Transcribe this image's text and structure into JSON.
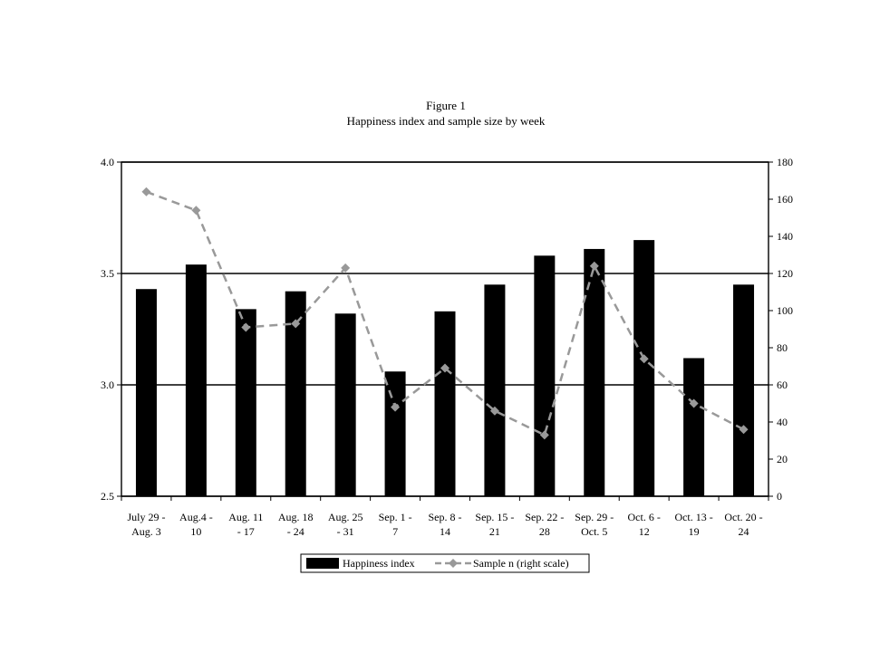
{
  "chart_data": {
    "type": "bar",
    "title": "Figure 1",
    "subtitle": "Happiness index and sample size by week",
    "categories": [
      [
        "July 29 -",
        "Aug. 3"
      ],
      [
        "Aug.4 -",
        "10"
      ],
      [
        "Aug. 11",
        "- 17"
      ],
      [
        "Aug. 18",
        "- 24"
      ],
      [
        "Aug. 25",
        "- 31"
      ],
      [
        "Sep. 1 -",
        "7"
      ],
      [
        "Sep. 8 -",
        "14"
      ],
      [
        "Sep. 15 -",
        "21"
      ],
      [
        "Sep. 22 -",
        "28"
      ],
      [
        "Sep. 29 -",
        "Oct. 5"
      ],
      [
        "Oct. 6 -",
        "12"
      ],
      [
        "Oct. 13 -",
        "19"
      ],
      [
        "Oct. 20 -",
        "24"
      ]
    ],
    "series": [
      {
        "name": "Happiness index",
        "kind": "bar",
        "axis": "left",
        "color": "#000000",
        "values": [
          3.43,
          3.54,
          3.34,
          3.42,
          3.32,
          3.06,
          3.33,
          3.45,
          3.58,
          3.61,
          3.65,
          3.12,
          3.45
        ]
      },
      {
        "name": "Sample n (right scale)",
        "kind": "line",
        "axis": "right",
        "color": "#999999",
        "style": "dashed",
        "marker": "diamond",
        "values": [
          164,
          154,
          91,
          93,
          123,
          48,
          69,
          46,
          33,
          124,
          74,
          50,
          36
        ]
      }
    ],
    "y_left": {
      "min": 2.5,
      "max": 4.0,
      "ticks": [
        "2.5",
        "3.0",
        "3.5",
        "4.0"
      ]
    },
    "y_right": {
      "min": 0,
      "max": 180,
      "ticks": [
        "0",
        "20",
        "40",
        "60",
        "80",
        "100",
        "120",
        "140",
        "160",
        "180"
      ]
    },
    "grid": "horizontal at left-axis ticks",
    "legend_placement": "bottom-center"
  }
}
